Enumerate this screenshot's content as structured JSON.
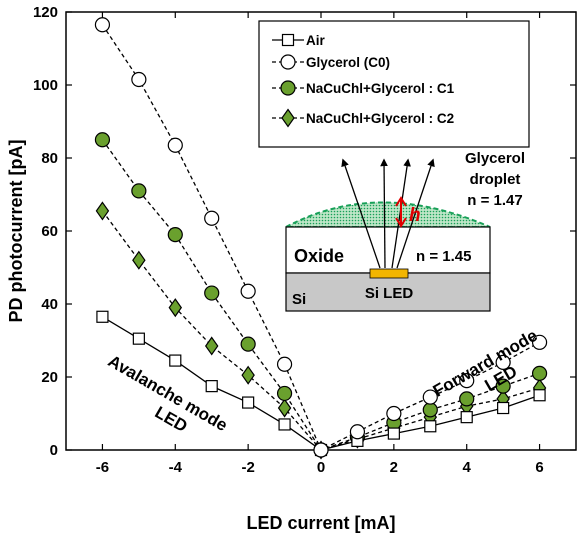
{
  "chart_data": {
    "type": "line",
    "xlabel": "LED current [mA]",
    "ylabel": "PD photocurrent [pA]",
    "xlim": [
      -7,
      7
    ],
    "ylim": [
      0,
      120
    ],
    "xticks": [
      -6,
      -4,
      -2,
      0,
      2,
      4,
      6
    ],
    "yticks": [
      0,
      20,
      40,
      60,
      80,
      100,
      120
    ],
    "xtick_labels": [
      "-6",
      "-4",
      "-2",
      "0",
      "2",
      "4",
      "6"
    ],
    "ytick_labels": [
      "0",
      "20",
      "40",
      "60",
      "80",
      "100",
      "120"
    ],
    "legend_position": "top-right",
    "x": [
      -6,
      -5,
      -4,
      -3,
      -2,
      -1,
      0,
      1,
      2,
      3,
      4,
      5,
      6
    ],
    "series": [
      {
        "name": "Air",
        "marker": "square",
        "line": "solid",
        "fill": "#ffffff",
        "values": [
          36.5,
          30.5,
          24.5,
          17.5,
          13,
          7,
          0,
          2.5,
          4.5,
          6.5,
          9,
          11.5,
          15
        ]
      },
      {
        "name": "Glycerol (C0)",
        "marker": "circle",
        "line": "dashed",
        "fill": "#ffffff",
        "values": [
          116.5,
          101.5,
          83.5,
          63.5,
          43.5,
          23.5,
          0,
          5,
          10,
          14.5,
          19,
          24,
          29.5
        ]
      },
      {
        "name": "NaCuChl+Glycerol : C1",
        "marker": "circle",
        "line": "dashed",
        "fill": "#6aa02e",
        "values": [
          85,
          71,
          59,
          43,
          29,
          15.5,
          0,
          3.5,
          7.5,
          11,
          14,
          17.5,
          21
        ]
      },
      {
        "name": "NaCuChl+Glycerol : C2",
        "marker": "diamond",
        "line": "dashed",
        "fill": "#6aa02e",
        "values": [
          65.5,
          52,
          39,
          28.5,
          20.5,
          11.5,
          0,
          3,
          6,
          9,
          12,
          14,
          17
        ]
      }
    ],
    "annotations": {
      "avalanche": [
        "Avalanche mode",
        "LED"
      ],
      "forward": [
        "Forward mode",
        "LED"
      ],
      "inset": {
        "droplet": [
          "Glycerol",
          "droplet",
          "n = 1.47"
        ],
        "h": "h",
        "oxide": "Oxide",
        "oxide_n": "n = 1.45",
        "si": "Si",
        "si_led": "Si LED"
      }
    },
    "colors": {
      "green_fill": "#6aa02e",
      "droplet": "#18a058",
      "led": "#f2b500",
      "substrate": "#c8c8c8",
      "arrow_h": "#e00000"
    }
  }
}
